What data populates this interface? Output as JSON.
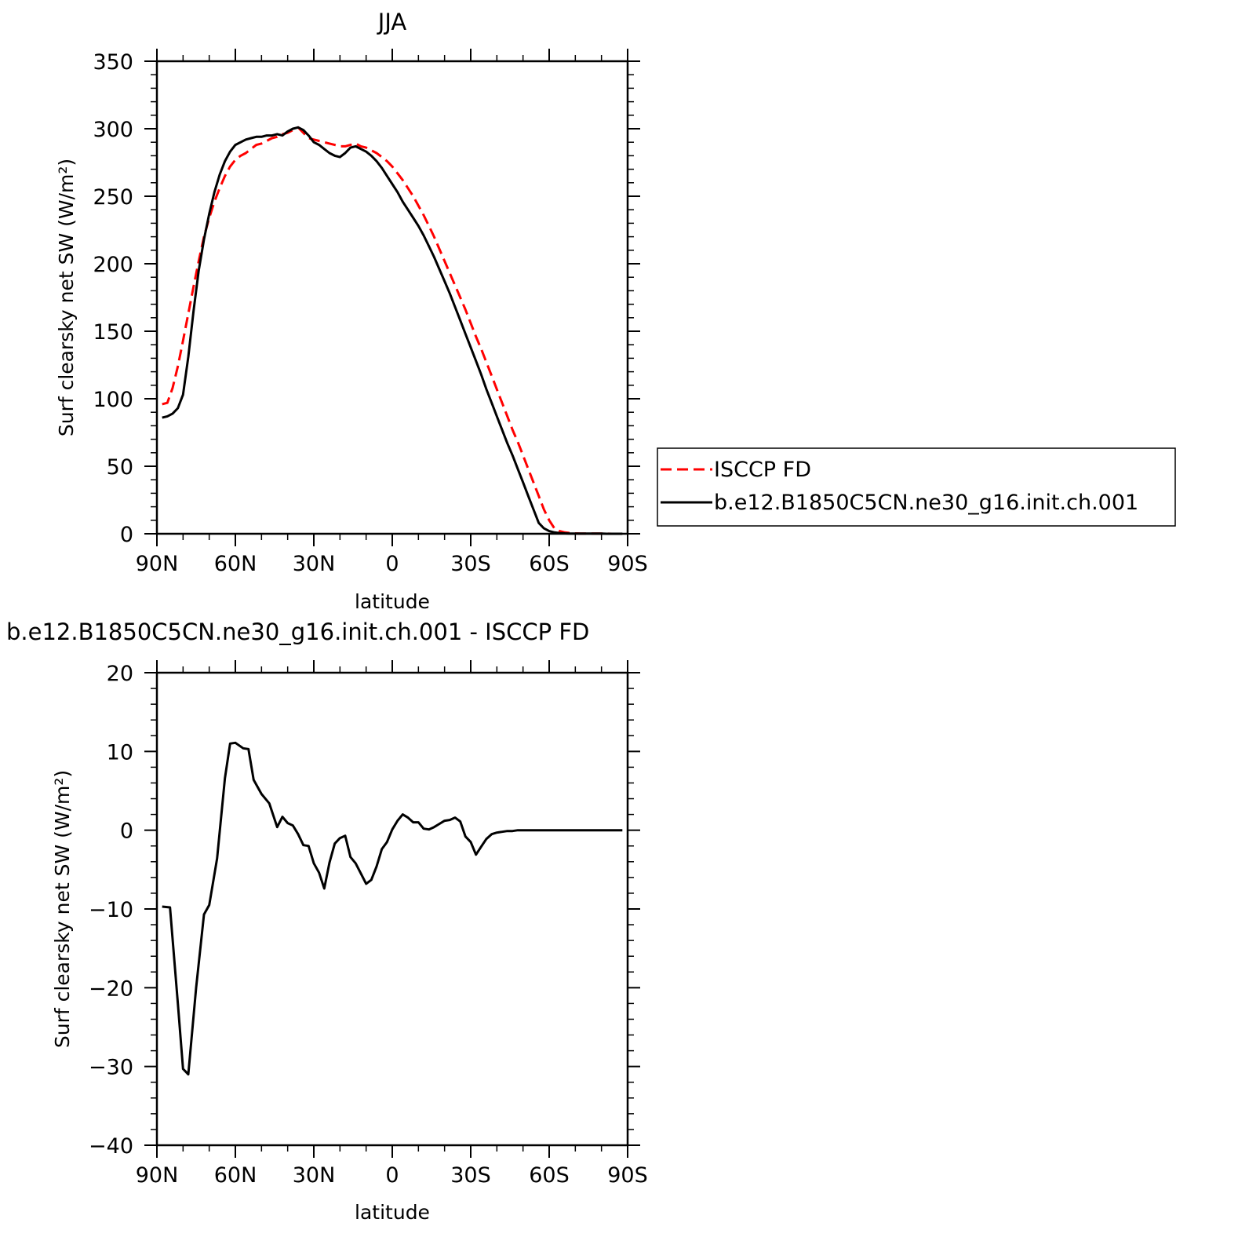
{
  "colors": {
    "obs": "#ff0000",
    "model": "#000000"
  },
  "chart_data": [
    {
      "type": "line",
      "title": "JJA",
      "xlabel": "latitude",
      "ylabel": "Surf clearsky net SW (W/m²)",
      "xlim": [
        -90,
        90
      ],
      "ylim": [
        0,
        350
      ],
      "xticks": [
        -90,
        -60,
        -30,
        0,
        30,
        60,
        90
      ],
      "xticklabels": [
        "90N",
        "60N",
        "30N",
        "0",
        "30S",
        "60S",
        "90S"
      ],
      "yticks": [
        0,
        50,
        100,
        150,
        200,
        250,
        300,
        350
      ],
      "yticklabels": [
        "0",
        "50",
        "100",
        "150",
        "200",
        "250",
        "300",
        "350"
      ],
      "legend": {
        "position": "right"
      },
      "series": [
        {
          "name": "ISCCP FD",
          "style": "dashed",
          "x": [
            -88,
            -86,
            -84,
            -82,
            -80,
            -78,
            -76,
            -74,
            -72,
            -70,
            -68,
            -66,
            -64,
            -62,
            -60,
            -58,
            -56,
            -54,
            -52,
            -50,
            -48,
            -46,
            -44,
            -42,
            -40,
            -38,
            -36,
            -34,
            -32,
            -30,
            -28,
            -26,
            -24,
            -22,
            -20,
            -18,
            -16,
            -14,
            -12,
            -10,
            -8,
            -6,
            -4,
            -2,
            0,
            2,
            4,
            6,
            8,
            10,
            12,
            14,
            16,
            18,
            20,
            22,
            24,
            26,
            28,
            30,
            32,
            34,
            36,
            38,
            40,
            42,
            44,
            46,
            48,
            50,
            52,
            54,
            56,
            58,
            60,
            62,
            64,
            66,
            68,
            70,
            72,
            74,
            76,
            78,
            80,
            82,
            84,
            86,
            88
          ],
          "values": [
            96,
            97,
            108,
            124,
            143,
            163,
            183,
            202,
            220,
            234,
            246,
            256,
            265,
            272,
            277,
            280,
            282,
            285,
            288,
            289,
            291,
            293,
            294,
            296,
            297,
            299,
            301,
            297,
            293,
            292,
            291,
            290,
            289,
            288,
            287,
            287,
            288,
            289,
            287,
            286,
            284,
            282,
            279,
            276,
            272,
            267,
            262,
            256,
            250,
            243,
            236,
            228,
            220,
            211,
            202,
            193,
            184,
            175,
            166,
            156,
            146,
            137,
            127,
            117,
            107,
            97,
            87,
            77,
            68,
            58,
            48,
            38,
            28,
            18,
            10,
            4,
            2,
            1,
            0.5,
            0.3,
            0.2,
            0.1,
            0.1,
            0.1,
            0.1,
            0.1,
            0,
            0,
            0
          ]
        },
        {
          "name": "b.e12.B1850C5CN.ne30_g16.init.ch.001",
          "style": "solid",
          "x": [
            -88,
            -86,
            -84,
            -82,
            -80,
            -78,
            -76,
            -74,
            -72,
            -70,
            -68,
            -66,
            -64,
            -62,
            -60,
            -58,
            -56,
            -54,
            -52,
            -50,
            -48,
            -46,
            -44,
            -42,
            -40,
            -38,
            -36,
            -34,
            -32,
            -30,
            -28,
            -26,
            -24,
            -22,
            -20,
            -18,
            -16,
            -14,
            -12,
            -10,
            -8,
            -6,
            -4,
            -2,
            0,
            2,
            4,
            6,
            8,
            10,
            12,
            14,
            16,
            18,
            20,
            22,
            24,
            26,
            28,
            30,
            32,
            34,
            36,
            38,
            40,
            42,
            44,
            46,
            48,
            50,
            52,
            54,
            56,
            58,
            60,
            62,
            64,
            66,
            68,
            70,
            72,
            74,
            76,
            78,
            80,
            82,
            84,
            86,
            88
          ],
          "values": [
            86,
            87,
            89,
            93,
            103,
            131,
            165,
            195,
            218,
            237,
            253,
            266,
            276,
            283,
            288,
            290,
            292,
            293,
            294,
            294,
            295,
            295,
            296,
            295,
            298,
            300,
            301,
            299,
            295,
            290,
            288,
            285,
            282,
            280,
            279,
            282,
            286,
            287,
            285,
            283,
            280,
            276,
            271,
            265,
            259,
            253,
            246,
            240,
            234,
            228,
            221,
            213,
            205,
            196,
            187,
            178,
            168,
            158,
            148,
            138,
            128,
            118,
            107,
            97,
            87,
            77,
            67,
            58,
            48,
            38,
            28,
            18,
            8,
            4,
            2,
            1,
            0.5,
            0.3,
            0.2,
            0.1,
            0.1,
            0.1,
            0.1,
            0.1,
            0.1,
            0,
            0,
            0,
            0
          ]
        }
      ]
    },
    {
      "type": "line",
      "title": "b.e12.B1850C5CN.ne30_g16.init.ch.001 - ISCCP FD",
      "xlabel": "latitude",
      "ylabel": "Surf clearsky net SW (W/m²)",
      "xlim": [
        -90,
        90
      ],
      "ylim": [
        -40,
        20
      ],
      "xticks": [
        -90,
        -60,
        -30,
        0,
        30,
        60,
        90
      ],
      "xticklabels": [
        "90N",
        "60N",
        "30N",
        "0",
        "30S",
        "60S",
        "90S"
      ],
      "yticks": [
        -40,
        -30,
        -20,
        -10,
        0,
        10,
        20
      ],
      "yticklabels": [
        "−40",
        "−30",
        "−20",
        "−10",
        "0",
        "10",
        "20"
      ],
      "series": [
        {
          "style": "solid",
          "x": [
            -88,
            -85,
            -82,
            -80,
            -78,
            -75,
            -72,
            -70,
            -67,
            -64,
            -62,
            -60,
            -57,
            -55,
            -53,
            -50,
            -47,
            -44,
            -42,
            -40,
            -38,
            -36,
            -34,
            -32,
            -30,
            -28,
            -26,
            -24,
            -22,
            -20,
            -18,
            -16,
            -14,
            -12,
            -10,
            -8,
            -6,
            -4,
            -2,
            0,
            2,
            4,
            6,
            8,
            10,
            12,
            14,
            16,
            18,
            20,
            22,
            24,
            26,
            28,
            30,
            32,
            34,
            36,
            38,
            40,
            42,
            44,
            46,
            48,
            50,
            52,
            54,
            56,
            58,
            60,
            62,
            64,
            66,
            68,
            70,
            72,
            74,
            76,
            78,
            80,
            82,
            84,
            86,
            88
          ],
          "values": [
            -9.7,
            -9.8,
            -22,
            -30.3,
            -31,
            -20,
            -10.7,
            -9.5,
            -3.6,
            6.6,
            11,
            11.1,
            10.4,
            10.3,
            6.4,
            4.6,
            3.4,
            0.4,
            1.7,
            0.9,
            0.6,
            -0.5,
            -1.9,
            -2,
            -4.2,
            -5.4,
            -7.4,
            -4.1,
            -1.7,
            -1,
            -0.7,
            -3.4,
            -4.2,
            -5.5,
            -6.8,
            -6.3,
            -4.6,
            -2.4,
            -1.5,
            0.1,
            1.2,
            2,
            1.6,
            1,
            1,
            0.2,
            0.1,
            0.4,
            0.8,
            1.2,
            1.3,
            1.6,
            1.1,
            -0.8,
            -1.5,
            -3.1,
            -2.1,
            -1.1,
            -0.5,
            -0.3,
            -0.2,
            -0.1,
            -0.1,
            0,
            0,
            0,
            0,
            0,
            0,
            0,
            0,
            0,
            0,
            0,
            0,
            0,
            0,
            0,
            0,
            0,
            0,
            0,
            0,
            0
          ]
        }
      ]
    }
  ]
}
